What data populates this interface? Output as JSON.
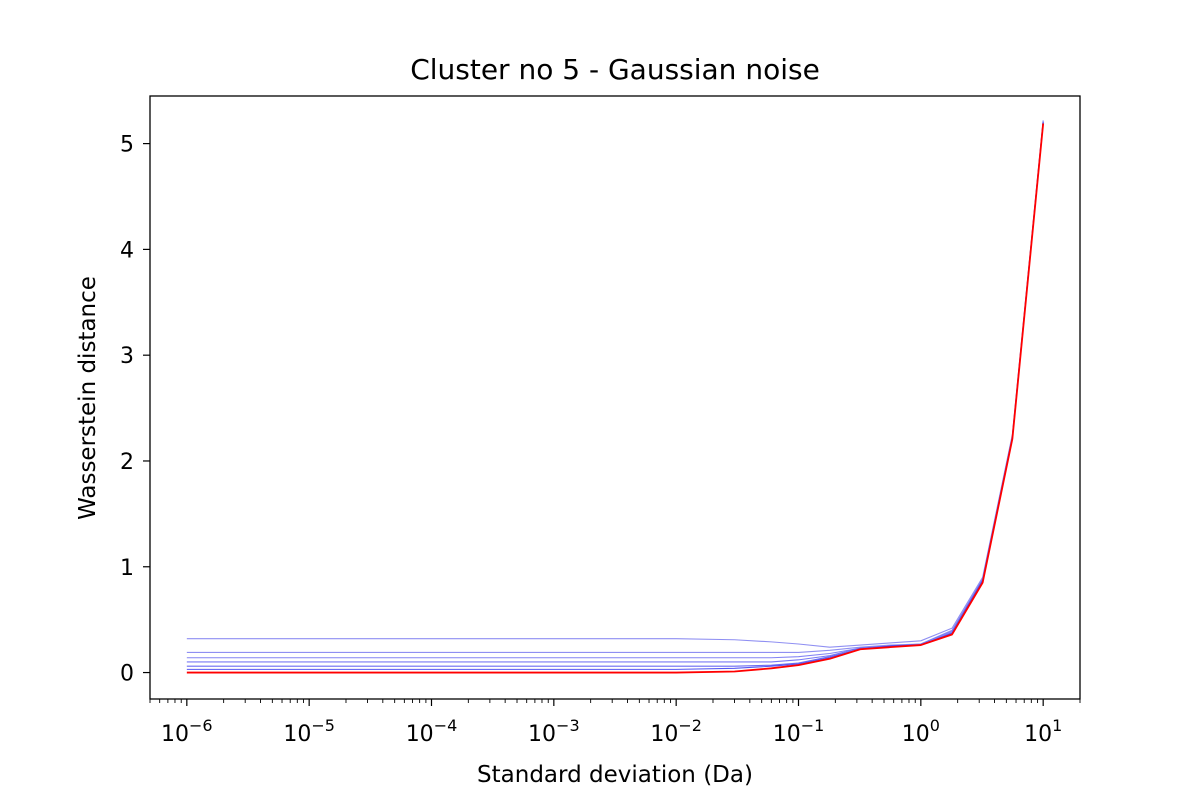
{
  "chart_data": {
    "type": "line",
    "title": "Cluster no 5 - Gaussian noise",
    "xlabel": "Standard deviation (Da)",
    "ylabel": "Wasserstein distance",
    "xscale": "log",
    "xlim": [
      5e-07,
      20
    ],
    "ylim": [
      -0.25,
      5.45
    ],
    "grid": false,
    "x": [
      1e-06,
      1e-05,
      0.0001,
      0.001,
      0.01,
      0.03,
      0.06,
      0.1,
      0.18,
      0.32,
      0.56,
      1.0,
      1.8,
      3.2,
      5.6,
      10.0
    ],
    "x_ticks": [
      {
        "value": 1e-06,
        "base": "10",
        "exp": "−6"
      },
      {
        "value": 1e-05,
        "base": "10",
        "exp": "−5"
      },
      {
        "value": 0.0001,
        "base": "10",
        "exp": "−4"
      },
      {
        "value": 0.001,
        "base": "10",
        "exp": "−3"
      },
      {
        "value": 0.01,
        "base": "10",
        "exp": "−2"
      },
      {
        "value": 0.1,
        "base": "10",
        "exp": "−1"
      },
      {
        "value": 1,
        "base": "10",
        "exp": "0"
      },
      {
        "value": 10,
        "base": "10",
        "exp": "1"
      }
    ],
    "y_ticks": [
      {
        "value": 0,
        "label": "0"
      },
      {
        "value": 1,
        "label": "1"
      },
      {
        "value": 2,
        "label": "2"
      },
      {
        "value": 3,
        "label": "3"
      },
      {
        "value": 4,
        "label": "4"
      },
      {
        "value": 5,
        "label": "5"
      }
    ],
    "series": [
      {
        "color": "#7b7bf0",
        "values": [
          0.32,
          0.32,
          0.32,
          0.32,
          0.32,
          0.31,
          0.29,
          0.27,
          0.24,
          0.26,
          0.28,
          0.3,
          0.42,
          0.9,
          2.25,
          5.22
        ]
      },
      {
        "color": "#7b7bf0",
        "values": [
          0.19,
          0.19,
          0.19,
          0.19,
          0.19,
          0.19,
          0.19,
          0.19,
          0.21,
          0.24,
          0.26,
          0.27,
          0.4,
          0.88,
          2.23,
          5.21
        ]
      },
      {
        "color": "#6e6ef2",
        "values": [
          0.14,
          0.14,
          0.14,
          0.14,
          0.14,
          0.14,
          0.14,
          0.15,
          0.18,
          0.23,
          0.25,
          0.27,
          0.39,
          0.88,
          2.23,
          5.21
        ]
      },
      {
        "color": "#6060f2",
        "values": [
          0.1,
          0.1,
          0.1,
          0.1,
          0.1,
          0.1,
          0.1,
          0.12,
          0.16,
          0.23,
          0.25,
          0.26,
          0.38,
          0.87,
          2.22,
          5.2
        ]
      },
      {
        "color": "#5050f0",
        "values": [
          0.06,
          0.06,
          0.06,
          0.06,
          0.06,
          0.06,
          0.07,
          0.09,
          0.15,
          0.22,
          0.25,
          0.26,
          0.37,
          0.87,
          2.22,
          5.2
        ]
      },
      {
        "color": "#3a3aee",
        "values": [
          0.03,
          0.03,
          0.03,
          0.03,
          0.03,
          0.04,
          0.06,
          0.08,
          0.14,
          0.22,
          0.25,
          0.26,
          0.37,
          0.86,
          2.22,
          5.2
        ]
      },
      {
        "color": "#ff0000",
        "values": [
          0.0,
          0.0,
          0.0,
          0.0,
          0.0,
          0.01,
          0.04,
          0.07,
          0.13,
          0.22,
          0.24,
          0.26,
          0.36,
          0.85,
          2.21,
          5.19
        ]
      }
    ]
  }
}
